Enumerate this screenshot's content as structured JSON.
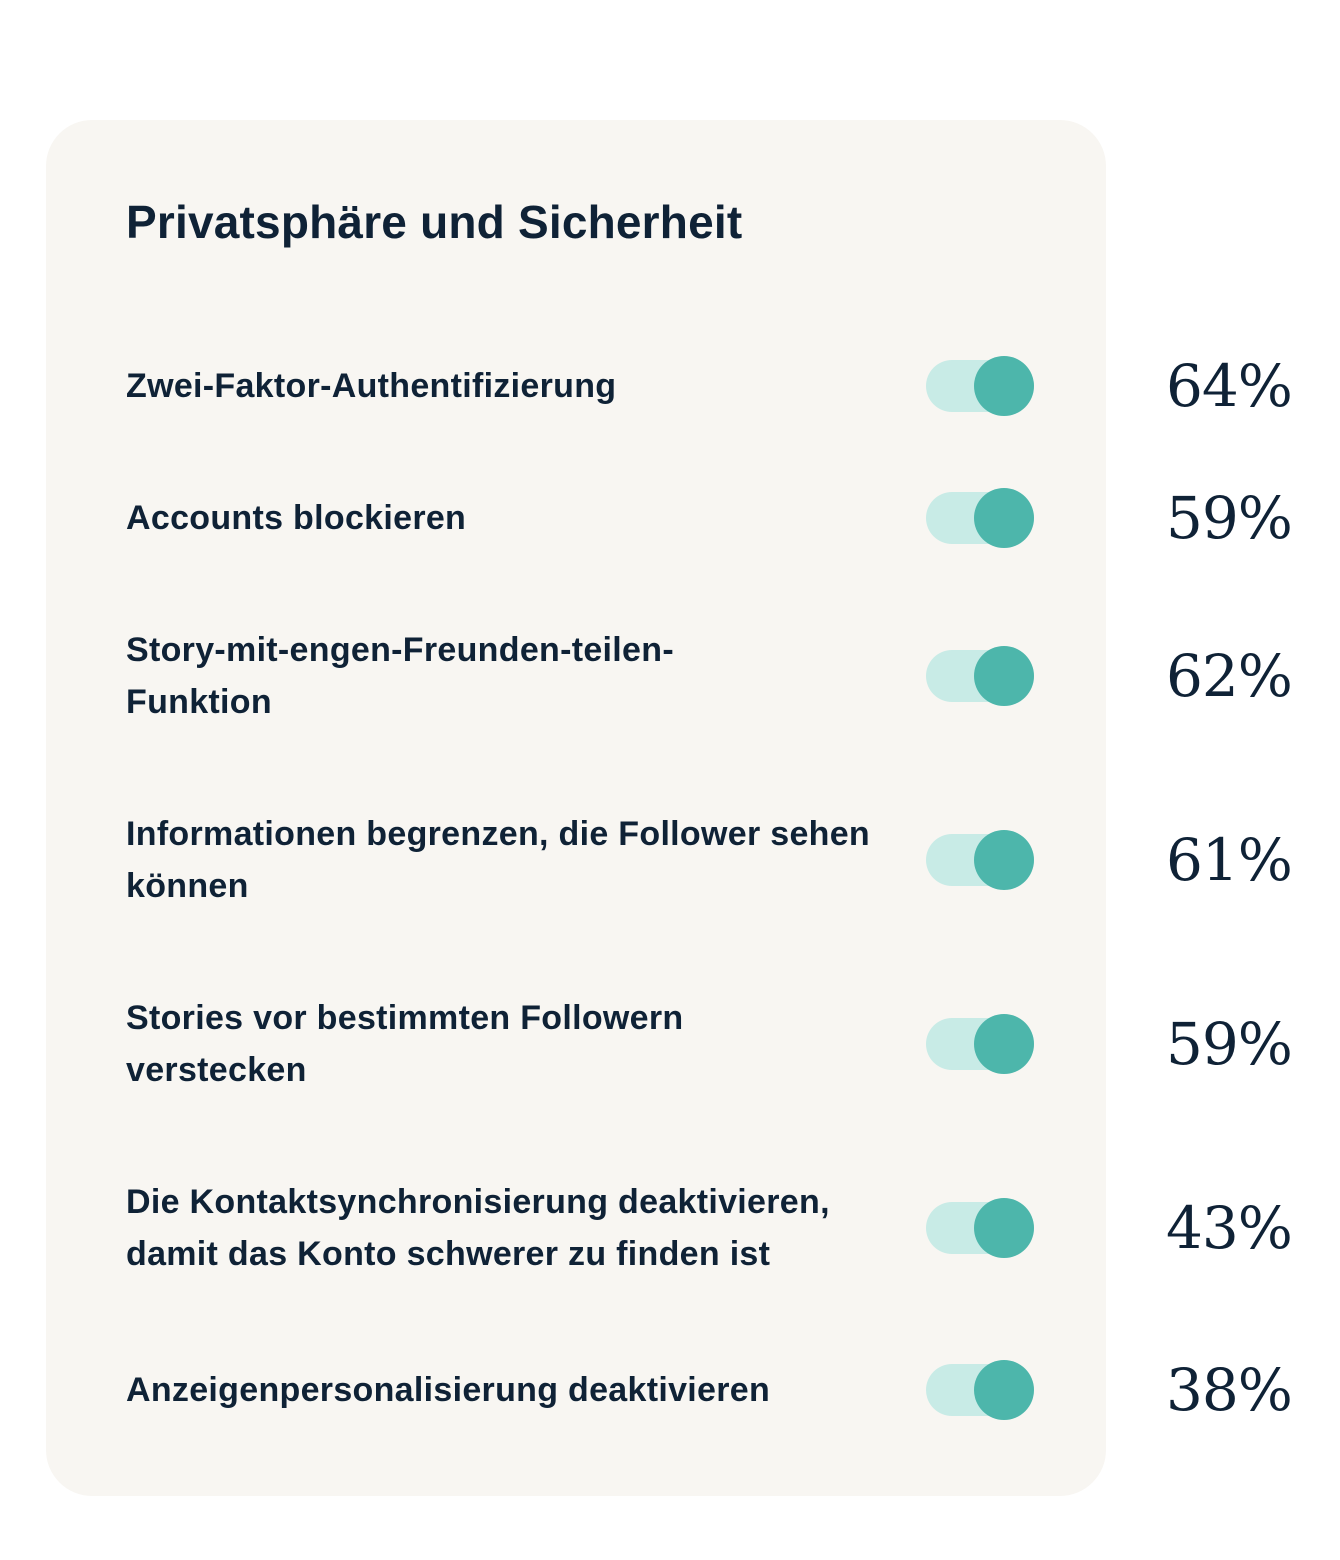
{
  "section": {
    "title": "Privatsphäre und Sicherheit"
  },
  "settings": [
    {
      "label": "Zwei-Faktor-Authentifizierung",
      "enabled": true,
      "percent": "64%"
    },
    {
      "label": "Accounts blockieren",
      "enabled": true,
      "percent": "59%"
    },
    {
      "label": "Story-mit-engen-Freunden-teilen-Funktion",
      "enabled": true,
      "percent": "62%"
    },
    {
      "label": "Informationen begrenzen, die Follower sehen können",
      "enabled": true,
      "percent": "61%"
    },
    {
      "label": "Stories vor bestimmten Followern verstecken",
      "enabled": true,
      "percent": "59%"
    },
    {
      "label": "Die Kontaktsynchronisierung deaktivieren, damit das Konto schwerer zu finden ist",
      "enabled": true,
      "percent": "43%"
    },
    {
      "label": "Anzeigenpersonalisierung deaktivieren",
      "enabled": true,
      "percent": "38%"
    }
  ],
  "colors": {
    "card_background": "#f8f6f2",
    "text": "#0f2236",
    "toggle_track": "#c8ebe6",
    "toggle_knob": "#4db6ab"
  }
}
